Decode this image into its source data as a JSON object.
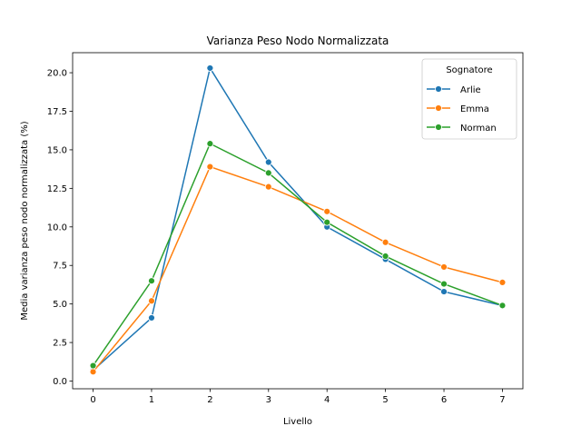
{
  "chart_data": {
    "type": "line",
    "title": "Varianza Peso Nodo Normalizzata",
    "xlabel": "Livello",
    "ylabel": "Media varianza peso nodo normalizzata (%)",
    "x": [
      0,
      1,
      2,
      3,
      4,
      5,
      6,
      7
    ],
    "xlim": [
      -0.35,
      7.35
    ],
    "ylim": [
      -0.5,
      21.3
    ],
    "xticks": [
      "0",
      "1",
      "2",
      "3",
      "4",
      "5",
      "6",
      "7"
    ],
    "yticks": [
      "0.0",
      "2.5",
      "5.0",
      "7.5",
      "10.0",
      "12.5",
      "15.0",
      "17.5",
      "20.0"
    ],
    "ytick_values": [
      0,
      2.5,
      5,
      7.5,
      10,
      12.5,
      15,
      17.5,
      20
    ],
    "grid": false,
    "legend_title": "Sognatore",
    "legend_position": "top-right",
    "series": [
      {
        "name": "Arlie",
        "color": "#1f77b4",
        "values": [
          0.7,
          4.1,
          20.3,
          14.2,
          10.0,
          7.9,
          5.8,
          4.9
        ]
      },
      {
        "name": "Emma",
        "color": "#ff7f0e",
        "values": [
          0.6,
          5.2,
          13.9,
          12.6,
          11.0,
          9.0,
          7.4,
          6.4
        ]
      },
      {
        "name": "Norman",
        "color": "#2ca02c",
        "values": [
          1.0,
          6.5,
          15.4,
          13.5,
          10.3,
          8.1,
          6.3,
          4.9
        ]
      }
    ]
  }
}
